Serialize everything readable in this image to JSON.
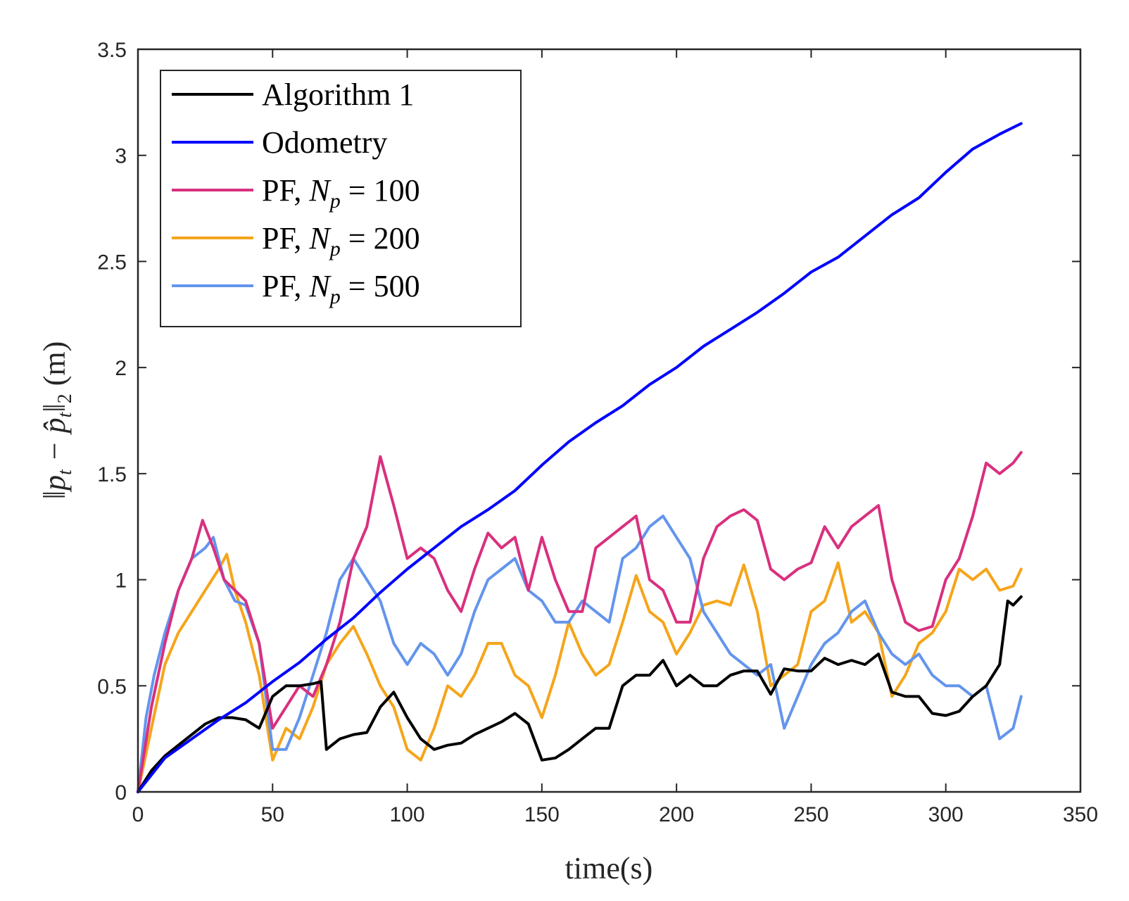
{
  "chart_data": {
    "type": "line",
    "title": "",
    "xlabel": "time(s)",
    "ylabel": "||p_t − p̂_t||_2 (m)",
    "ylabel_parts": {
      "norm_open": "‖p",
      "sub1": "t",
      "minus": " − p̂",
      "sub2": "t",
      "norm_close": "‖",
      "sub3": "2",
      "unit": " (m)"
    },
    "xlim": [
      0,
      350
    ],
    "ylim": [
      0,
      3.5
    ],
    "xticks": [
      0,
      50,
      100,
      150,
      200,
      250,
      300,
      350
    ],
    "xtick_labels": [
      "0",
      "50",
      "100",
      "150",
      "200",
      "250",
      "300",
      "350"
    ],
    "yticks": [
      0,
      0.5,
      1,
      1.5,
      2,
      2.5,
      3,
      3.5
    ],
    "ytick_labels": [
      "0",
      "0.5",
      "1",
      "1.5",
      "2",
      "2.5",
      "3",
      "3.5"
    ],
    "grid": false,
    "legend_position": "top-left",
    "series": [
      {
        "name": "Algorithm 1",
        "legend_main": "Algorithm 1",
        "legend_sub": "",
        "legend_value": "",
        "color": "#000000",
        "x": [
          0,
          5,
          10,
          15,
          20,
          25,
          30,
          35,
          40,
          45,
          50,
          55,
          60,
          65,
          68,
          70,
          75,
          80,
          85,
          90,
          95,
          100,
          105,
          110,
          115,
          120,
          125,
          130,
          135,
          140,
          145,
          150,
          155,
          160,
          165,
          170,
          175,
          180,
          185,
          190,
          195,
          200,
          205,
          210,
          215,
          220,
          225,
          230,
          235,
          240,
          245,
          250,
          255,
          260,
          265,
          270,
          275,
          280,
          285,
          290,
          295,
          300,
          305,
          310,
          315,
          320,
          323,
          325,
          328
        ],
        "y": [
          0,
          0.1,
          0.17,
          0.22,
          0.27,
          0.32,
          0.35,
          0.35,
          0.34,
          0.3,
          0.45,
          0.5,
          0.5,
          0.51,
          0.52,
          0.2,
          0.25,
          0.27,
          0.28,
          0.4,
          0.47,
          0.35,
          0.25,
          0.2,
          0.22,
          0.23,
          0.27,
          0.3,
          0.33,
          0.37,
          0.32,
          0.15,
          0.16,
          0.2,
          0.25,
          0.3,
          0.3,
          0.5,
          0.55,
          0.55,
          0.62,
          0.5,
          0.55,
          0.5,
          0.5,
          0.55,
          0.57,
          0.57,
          0.46,
          0.58,
          0.57,
          0.57,
          0.63,
          0.6,
          0.62,
          0.6,
          0.65,
          0.47,
          0.45,
          0.45,
          0.37,
          0.36,
          0.38,
          0.45,
          0.5,
          0.6,
          0.9,
          0.88,
          0.92
        ]
      },
      {
        "name": "Odometry",
        "legend_main": "Odometry",
        "legend_sub": "",
        "legend_value": "",
        "color": "#0000ff",
        "x": [
          0,
          10,
          20,
          30,
          40,
          50,
          60,
          70,
          80,
          90,
          100,
          110,
          120,
          130,
          140,
          150,
          160,
          170,
          180,
          190,
          200,
          210,
          220,
          230,
          240,
          250,
          260,
          270,
          280,
          290,
          300,
          310,
          320,
          328
        ],
        "y": [
          0,
          0.16,
          0.25,
          0.34,
          0.42,
          0.52,
          0.61,
          0.72,
          0.82,
          0.94,
          1.05,
          1.15,
          1.25,
          1.33,
          1.42,
          1.54,
          1.65,
          1.74,
          1.82,
          1.92,
          2.0,
          2.1,
          2.18,
          2.26,
          2.35,
          2.45,
          2.52,
          2.62,
          2.72,
          2.8,
          2.92,
          3.03,
          3.1,
          3.15
        ]
      },
      {
        "name": "PF, N_p = 100",
        "legend_main": "PF, N",
        "legend_sub": "p",
        "legend_value": " = 100",
        "color": "#d9307f",
        "x": [
          0,
          5,
          10,
          15,
          20,
          24,
          28,
          32,
          36,
          40,
          45,
          50,
          55,
          60,
          65,
          70,
          75,
          80,
          85,
          90,
          95,
          100,
          105,
          110,
          115,
          120,
          125,
          130,
          135,
          140,
          145,
          150,
          155,
          160,
          165,
          170,
          175,
          180,
          185,
          190,
          195,
          200,
          205,
          210,
          215,
          220,
          225,
          230,
          235,
          240,
          245,
          250,
          255,
          260,
          265,
          270,
          275,
          280,
          285,
          290,
          295,
          300,
          305,
          310,
          315,
          320,
          325,
          328
        ],
        "y": [
          0,
          0.4,
          0.7,
          0.95,
          1.1,
          1.28,
          1.15,
          1.0,
          0.95,
          0.9,
          0.7,
          0.3,
          0.4,
          0.5,
          0.45,
          0.6,
          0.8,
          1.1,
          1.25,
          1.58,
          1.35,
          1.1,
          1.15,
          1.1,
          0.95,
          0.85,
          1.05,
          1.22,
          1.15,
          1.2,
          0.95,
          1.2,
          1.0,
          0.85,
          0.85,
          1.15,
          1.2,
          1.25,
          1.3,
          1.0,
          0.95,
          0.8,
          0.8,
          1.1,
          1.25,
          1.3,
          1.33,
          1.28,
          1.05,
          1.0,
          1.05,
          1.08,
          1.25,
          1.15,
          1.25,
          1.3,
          1.35,
          1.0,
          0.8,
          0.76,
          0.78,
          1.0,
          1.1,
          1.3,
          1.55,
          1.5,
          1.55,
          1.6
        ]
      },
      {
        "name": "PF, N_p = 200",
        "legend_main": "PF, N",
        "legend_sub": "p",
        "legend_value": " = 200",
        "color": "#f5a51b",
        "x": [
          0,
          5,
          10,
          15,
          20,
          25,
          30,
          33,
          36,
          40,
          45,
          50,
          55,
          60,
          65,
          70,
          75,
          80,
          85,
          90,
          95,
          100,
          105,
          110,
          115,
          120,
          125,
          130,
          135,
          140,
          145,
          150,
          155,
          160,
          165,
          170,
          175,
          180,
          185,
          190,
          195,
          200,
          205,
          210,
          215,
          220,
          225,
          230,
          235,
          240,
          245,
          250,
          255,
          260,
          265,
          270,
          275,
          280,
          285,
          290,
          295,
          300,
          305,
          310,
          315,
          320,
          325,
          328
        ],
        "y": [
          0,
          0.3,
          0.6,
          0.75,
          0.85,
          0.95,
          1.05,
          1.12,
          0.95,
          0.8,
          0.55,
          0.15,
          0.3,
          0.25,
          0.4,
          0.6,
          0.7,
          0.78,
          0.65,
          0.5,
          0.4,
          0.2,
          0.15,
          0.3,
          0.5,
          0.45,
          0.55,
          0.7,
          0.7,
          0.55,
          0.5,
          0.35,
          0.55,
          0.8,
          0.65,
          0.55,
          0.6,
          0.8,
          1.02,
          0.85,
          0.8,
          0.65,
          0.75,
          0.88,
          0.9,
          0.88,
          1.07,
          0.85,
          0.5,
          0.55,
          0.6,
          0.85,
          0.9,
          1.08,
          0.8,
          0.85,
          0.75,
          0.45,
          0.55,
          0.7,
          0.75,
          0.85,
          1.05,
          1.0,
          1.05,
          0.95,
          0.97,
          1.05
        ]
      },
      {
        "name": "PF, N_p = 500",
        "legend_main": "PF, N",
        "legend_sub": "p",
        "legend_value": " = 500",
        "color": "#6495ed",
        "x": [
          0,
          3,
          6,
          10,
          15,
          20,
          25,
          28,
          32,
          36,
          40,
          45,
          50,
          55,
          60,
          65,
          70,
          75,
          80,
          85,
          90,
          95,
          100,
          105,
          110,
          115,
          120,
          125,
          130,
          135,
          140,
          145,
          150,
          155,
          160,
          165,
          170,
          175,
          180,
          185,
          190,
          195,
          200,
          205,
          210,
          215,
          220,
          225,
          230,
          235,
          240,
          245,
          250,
          255,
          260,
          265,
          270,
          275,
          280,
          285,
          290,
          295,
          300,
          305,
          310,
          315,
          320,
          325,
          328
        ],
        "y": [
          0,
          0.35,
          0.55,
          0.75,
          0.95,
          1.1,
          1.15,
          1.2,
          1.0,
          0.9,
          0.88,
          0.7,
          0.2,
          0.2,
          0.35,
          0.55,
          0.75,
          1.0,
          1.1,
          1.0,
          0.9,
          0.7,
          0.6,
          0.7,
          0.65,
          0.55,
          0.65,
          0.85,
          1.0,
          1.05,
          1.1,
          0.95,
          0.9,
          0.8,
          0.8,
          0.9,
          0.85,
          0.8,
          1.1,
          1.15,
          1.25,
          1.3,
          1.2,
          1.1,
          0.85,
          0.75,
          0.65,
          0.6,
          0.55,
          0.6,
          0.3,
          0.45,
          0.6,
          0.7,
          0.75,
          0.85,
          0.9,
          0.75,
          0.65,
          0.6,
          0.65,
          0.55,
          0.5,
          0.5,
          0.45,
          0.5,
          0.25,
          0.3,
          0.45
        ]
      }
    ]
  }
}
